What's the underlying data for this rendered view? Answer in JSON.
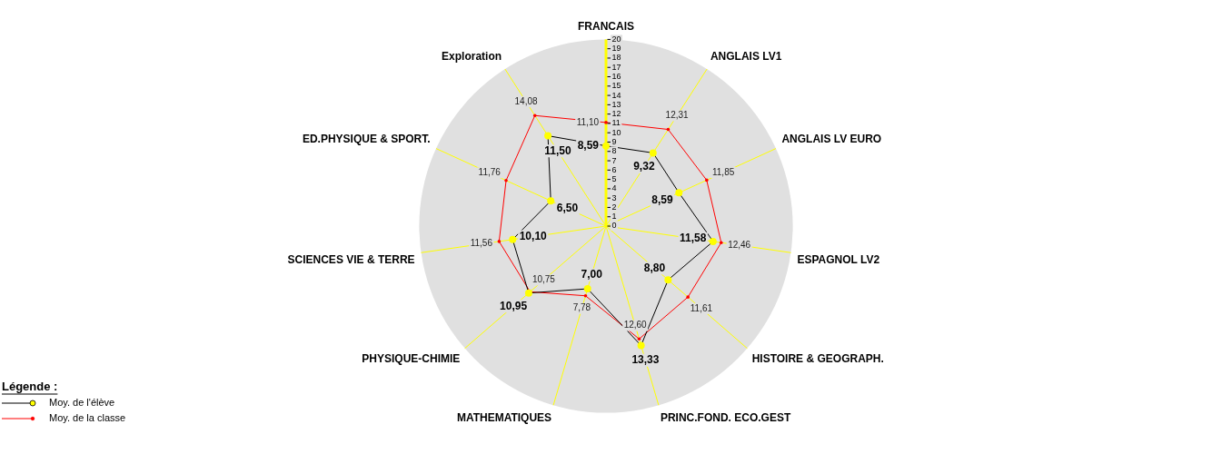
{
  "chart_data": {
    "type": "radar",
    "categories": [
      "FRANCAIS",
      "ANGLAIS LV1",
      "ANGLAIS LV EURO",
      "ESPAGNOL LV2",
      "HISTOIRE & GEOGRAPH.",
      "PRINC.FOND. ECO.GEST",
      "MATHEMATIQUES",
      "PHYSIQUE-CHIMIE",
      "SCIENCES VIE & TERRE",
      "ED.PHYSIQUE & SPORT.",
      "Exploration"
    ],
    "series": [
      {
        "name": "Moy. de l'élève",
        "color": "#000000",
        "colors": [
          "#ffff00",
          "#ffff00",
          "#ffff00",
          "#ffff00",
          "#ffff00",
          "#ffff00",
          "#ffff00",
          "#ffff00",
          "#ffff00",
          "#ffff00",
          "#ffff00"
        ],
        "values": [
          8.59,
          9.32,
          8.59,
          11.58,
          8.8,
          13.33,
          7,
          10.95,
          10.1,
          6.5,
          11.5
        ],
        "value_labels": [
          "8,59",
          "9,32",
          "8,59",
          "11,58",
          "8,80",
          "13,33",
          "7,00",
          "10,95",
          "10,10",
          "6,50",
          "11,50"
        ]
      },
      {
        "name": "Moy. de la classe",
        "color": "#ff0000",
        "values": [
          11.1,
          12.31,
          11.85,
          12.46,
          11.61,
          12.6,
          7.78,
          10.75,
          11.56,
          11.76,
          14.08
        ],
        "value_labels": [
          "11,10",
          "12,31",
          "11,85",
          "12,46",
          "11,61",
          "12,60",
          "7,78",
          "10,75",
          "11,56",
          "11,76",
          "14,08"
        ]
      }
    ],
    "ylim": [
      0,
      20
    ],
    "yticks": [
      0,
      1,
      2,
      3,
      4,
      5,
      6,
      7,
      8,
      9,
      10,
      11,
      12,
      13,
      14,
      15,
      16,
      17,
      18,
      19,
      20
    ],
    "grid": true,
    "marker": "circle",
    "legend": "bottom left",
    "legend_title": "Légende :"
  }
}
